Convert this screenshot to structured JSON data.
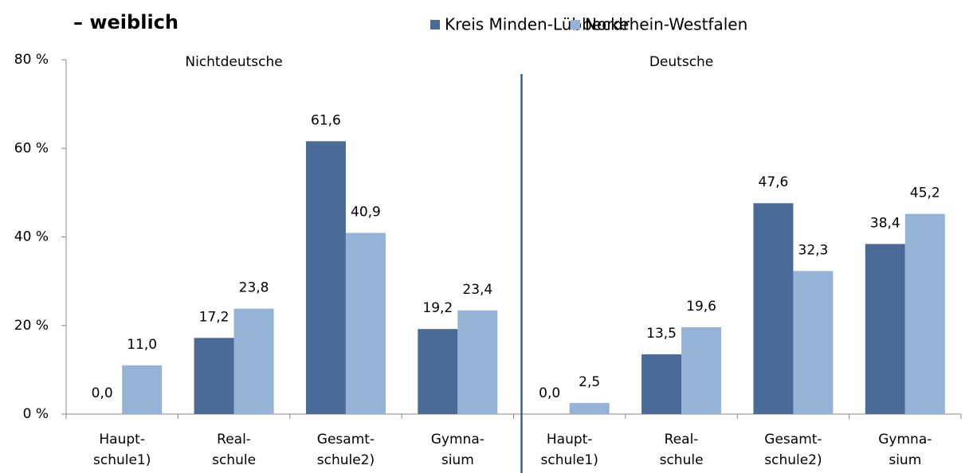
{
  "chart_data": {
    "type": "bar",
    "title": "– weiblich",
    "groups": [
      "Nichtdeutsche",
      "Deutsche"
    ],
    "categories": [
      [
        "Haupt-",
        "schule1)"
      ],
      [
        "Real-",
        "schule"
      ],
      [
        "Gesamt-",
        "schule2)"
      ],
      [
        "Gymna-",
        "sium"
      ],
      [
        "Haupt-",
        "schule1)"
      ],
      [
        "Real-",
        "schule"
      ],
      [
        "Gesamt-",
        "schule2)"
      ],
      [
        "Gymna-",
        "sium"
      ]
    ],
    "series": [
      {
        "name": "Kreis Minden-Lübbecke",
        "color": "#4a6b97",
        "values": [
          0.0,
          17.2,
          61.6,
          19.2,
          0.0,
          13.5,
          47.6,
          38.4
        ],
        "value_labels": [
          "0,0",
          "17,2",
          "61,6",
          "19,2",
          "0,0",
          "13,5",
          "47,6",
          "38,4"
        ]
      },
      {
        "name": "Nordrhein-Westfalen",
        "color": "#95b3d7",
        "values": [
          11.0,
          23.8,
          40.9,
          23.4,
          2.5,
          19.6,
          32.3,
          45.2
        ],
        "value_labels": [
          "11,0",
          "23,8",
          "40,9",
          "23,4",
          "2,5",
          "19,6",
          "32,3",
          "45,2"
        ]
      }
    ],
    "ylim": [
      0,
      80
    ],
    "yticks": [
      {
        "value": 0,
        "label": "0 %"
      },
      {
        "value": 20,
        "label": "20 %"
      },
      {
        "value": 40,
        "label": "40 %"
      },
      {
        "value": 60,
        "label": "60 %"
      },
      {
        "value": 80,
        "label": "80 %"
      }
    ]
  }
}
